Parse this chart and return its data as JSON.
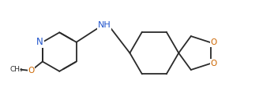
{
  "line_color": "#2a2a2a",
  "background": "#ffffff",
  "N_color": "#2255cc",
  "O_color": "#cc6600",
  "lw": 1.3,
  "fs": 7.5,
  "xlim": [
    0,
    9.5
  ],
  "ylim": [
    0,
    3.5
  ]
}
